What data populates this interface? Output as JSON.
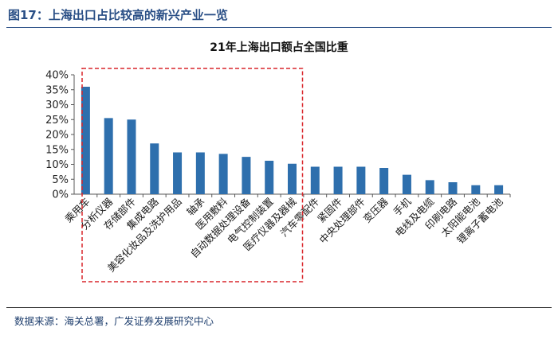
{
  "figure": {
    "title": "图17：上海出口占比较高的新兴产业一览",
    "source": "数据来源：海关总署，广发证券发展研究中心"
  },
  "colors": {
    "bar": "#2e6fad",
    "title": "#2a4f86",
    "highlight_box": "#d9262b"
  },
  "chart_data": {
    "type": "bar",
    "title": "21年上海出口额占全国比重",
    "xlabel": "",
    "ylabel": "",
    "ylim": [
      0,
      0.4
    ],
    "yticks": [
      "0%",
      "5%",
      "10%",
      "15%",
      "20%",
      "25%",
      "30%",
      "35%",
      "40%"
    ],
    "grid": false,
    "legend": "none",
    "categories": [
      "乘用车",
      "分析仪器",
      "存储部件",
      "集成电路",
      "美容化妆品及洗护用品",
      "轴承",
      "医用敷料",
      "自动数据处理设备",
      "电气控制装置",
      "医疗仪器及器械",
      "汽车零配件",
      "紧固件",
      "中央处理部件",
      "变压器",
      "手机",
      "电线及电缆",
      "印刷电路",
      "太阳能电池",
      "锂离子蓄电池"
    ],
    "values": [
      0.36,
      0.255,
      0.25,
      0.17,
      0.14,
      0.14,
      0.135,
      0.125,
      0.112,
      0.102,
      0.092,
      0.092,
      0.092,
      0.088,
      0.065,
      0.047,
      0.04,
      0.03,
      0.03
    ],
    "highlight": {
      "from_category": "乘用车",
      "to_category": "医疗仪器及器械"
    }
  }
}
